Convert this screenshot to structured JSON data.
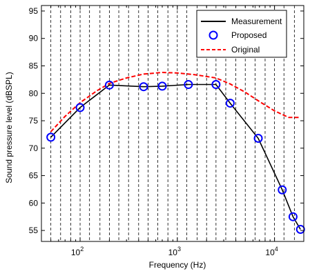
{
  "chart_data": {
    "type": "line",
    "title": "",
    "xlabel": "Frequency (Hz)",
    "ylabel": "Sound pressure level (dBSPL)",
    "xscale": "log",
    "xlim": [
      40,
      20000
    ],
    "ylim": [
      53,
      96
    ],
    "yticks": [
      55,
      60,
      65,
      70,
      75,
      80,
      85,
      90,
      95
    ],
    "xticks": [
      {
        "value": 100,
        "base": "10",
        "exp": "2"
      },
      {
        "value": 1000,
        "base": "10",
        "exp": "3"
      },
      {
        "value": 10000,
        "base": "10",
        "exp": "4"
      }
    ],
    "grid": "dashed vertical lines at octave band frequencies",
    "grid_frequencies": [
      50,
      63,
      80,
      100,
      125,
      160,
      200,
      250,
      315,
      400,
      500,
      630,
      800,
      1000,
      1250,
      1600,
      2000,
      2500,
      3150,
      4000,
      5000,
      6300,
      8000,
      10000,
      12500,
      16000,
      20000
    ],
    "legend_position": "top-right",
    "series": [
      {
        "name": "Measurement",
        "color": "#000000",
        "style": "solid",
        "x": [
          50,
          100,
          200,
          450,
          700,
          1300,
          2500,
          3500,
          6800,
          12000,
          15500,
          18500
        ],
        "y": [
          72,
          77.4,
          81.5,
          81.2,
          81.3,
          81.6,
          81.6,
          78.2,
          71.8,
          62.4,
          57.5,
          55.2
        ]
      },
      {
        "name": "Proposed",
        "color": "#0000ff",
        "style": "circle-markers",
        "x": [
          50,
          100,
          200,
          450,
          700,
          1300,
          2500,
          3500,
          6800,
          12000,
          15500,
          18500
        ],
        "y": [
          72,
          77.4,
          81.5,
          81.2,
          81.3,
          81.6,
          81.6,
          78.2,
          71.8,
          62.4,
          57.5,
          55.2
        ]
      },
      {
        "name": "Original",
        "color": "#ff0000",
        "style": "dashed",
        "x": [
          50,
          70,
          100,
          150,
          200,
          300,
          450,
          700,
          1000,
          1500,
          2500,
          3500,
          5000,
          7000,
          10000,
          14000,
          18000
        ],
        "y": [
          73,
          75.8,
          78.3,
          80.5,
          81.8,
          82.8,
          83.5,
          83.8,
          83.7,
          83.4,
          82.8,
          81.7,
          80.2,
          78.5,
          76.8,
          75.6,
          75.6
        ]
      }
    ]
  }
}
